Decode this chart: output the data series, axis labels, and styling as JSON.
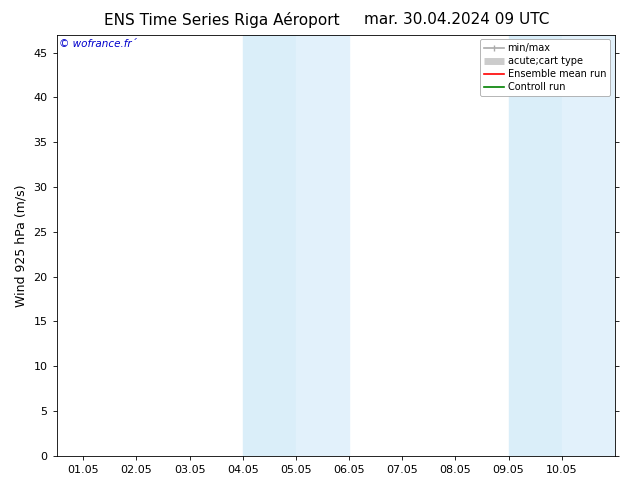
{
  "title_left": "ENS Time Series Riga Aéroport",
  "title_right": "mar. 30.04.2024 09 UTC",
  "ylabel": "Wind 925 hPa (m/s)",
  "watermark": "© wofrance.fr´",
  "xtick_labels": [
    "01.05",
    "02.05",
    "03.05",
    "04.05",
    "05.05",
    "06.05",
    "07.05",
    "08.05",
    "09.05",
    "10.05"
  ],
  "ylim": [
    0,
    47
  ],
  "yticks": [
    0,
    5,
    10,
    15,
    20,
    25,
    30,
    35,
    40,
    45
  ],
  "shaded_regions": [
    {
      "xmin": "2024-05-04",
      "xmax": "2024-05-05",
      "color": "#daeef9"
    },
    {
      "xmin": "2024-05-05",
      "xmax": "2024-05-06",
      "color": "#e2f1fb"
    },
    {
      "xmin": "2024-05-09",
      "xmax": "2024-05-10",
      "color": "#daeef9"
    },
    {
      "xmin": "2024-05-10",
      "xmax": "2024-05-11",
      "color": "#e2f1fb"
    }
  ],
  "legend_entries": [
    {
      "label": "min/max",
      "color": "#aaaaaa",
      "lw": 1.2
    },
    {
      "label": "acute;cart type",
      "color": "#cccccc",
      "lw": 5
    },
    {
      "label": "Ensemble mean run",
      "color": "red",
      "lw": 1.2
    },
    {
      "label": "Controll run",
      "color": "green",
      "lw": 1.2
    }
  ],
  "background_color": "#ffffff",
  "watermark_color": "#0000cc",
  "title_fontsize": 11,
  "ylabel_fontsize": 9,
  "tick_fontsize": 8,
  "legend_fontsize": 7
}
